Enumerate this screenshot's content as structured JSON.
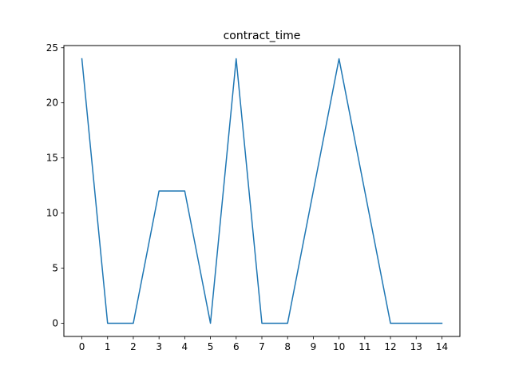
{
  "chart_data": {
    "type": "line",
    "title": "contract_time",
    "xlabel": "",
    "ylabel": "",
    "x": [
      0,
      1,
      2,
      3,
      4,
      5,
      6,
      7,
      8,
      9,
      10,
      11,
      12,
      13,
      14
    ],
    "series": [
      {
        "values": [
          24,
          0,
          0,
          12,
          12,
          0,
          24,
          0,
          0,
          12,
          24,
          12,
          0,
          0,
          0
        ],
        "color": "#1f77b4"
      }
    ],
    "xticks": [
      "0",
      "1",
      "2",
      "3",
      "4",
      "5",
      "6",
      "7",
      "8",
      "9",
      "10",
      "11",
      "12",
      "13",
      "14"
    ],
    "yticks": [
      "0",
      "5",
      "10",
      "15",
      "20",
      "25"
    ],
    "xlim": [
      -0.7,
      14.7
    ],
    "ylim": [
      -1.2,
      25.2
    ],
    "grid": false,
    "legend": "none"
  }
}
